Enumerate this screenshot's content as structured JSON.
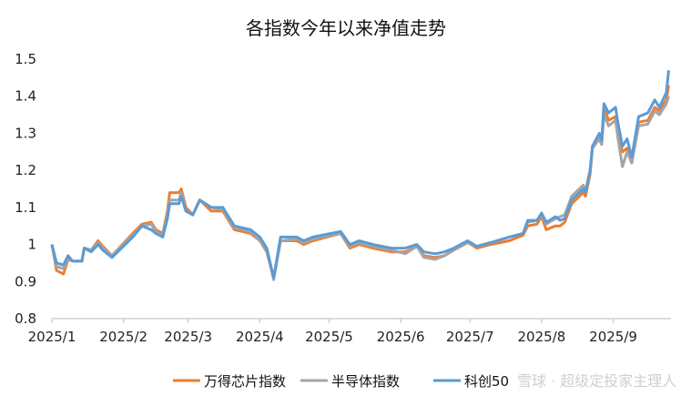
{
  "chart_data": {
    "type": "line",
    "title": "各指数今年以来净值走势",
    "xlabel": "",
    "ylabel": "",
    "ylim": [
      0.8,
      1.5
    ],
    "yticks": [
      "0.8",
      "0.9",
      "1",
      "1.1",
      "1.2",
      "1.3",
      "1.4",
      "1.5"
    ],
    "xlim": [
      "2025-01-01",
      "2025-09-26"
    ],
    "xticks": [
      {
        "date": "2025-01-01",
        "label": "2025/1"
      },
      {
        "date": "2025-02-01",
        "label": "2025/2"
      },
      {
        "date": "2025-03-01",
        "label": "2025/3"
      },
      {
        "date": "2025-04-01",
        "label": "2025/4"
      },
      {
        "date": "2025-05-01",
        "label": "2025/5"
      },
      {
        "date": "2025-06-01",
        "label": "2025/6"
      },
      {
        "date": "2025-07-01",
        "label": "2025/7"
      },
      {
        "date": "2025-08-01",
        "label": "2025/8"
      },
      {
        "date": "2025-09-01",
        "label": "2025/9"
      }
    ],
    "grid": false,
    "legend_position": "bottom",
    "x": [
      "2025-01-01",
      "2025-01-03",
      "2025-01-06",
      "2025-01-08",
      "2025-01-10",
      "2025-01-14",
      "2025-01-15",
      "2025-01-18",
      "2025-01-21",
      "2025-01-23",
      "2025-01-27",
      "2025-02-05",
      "2025-02-09",
      "2025-02-13",
      "2025-02-15",
      "2025-02-18",
      "2025-02-20",
      "2025-02-21",
      "2025-02-25",
      "2025-02-26",
      "2025-02-28",
      "2025-03-03",
      "2025-03-06",
      "2025-03-11",
      "2025-03-16",
      "2025-03-21",
      "2025-03-28",
      "2025-04-01",
      "2025-04-04",
      "2025-04-07",
      "2025-04-10",
      "2025-04-17",
      "2025-04-20",
      "2025-04-24",
      "2025-05-06",
      "2025-05-10",
      "2025-05-14",
      "2025-05-20",
      "2025-05-28",
      "2025-06-03",
      "2025-06-08",
      "2025-06-11",
      "2025-06-16",
      "2025-06-20",
      "2025-06-24",
      "2025-06-30",
      "2025-07-04",
      "2025-07-10",
      "2025-07-18",
      "2025-07-24",
      "2025-07-26",
      "2025-07-30",
      "2025-08-01",
      "2025-08-03",
      "2025-08-07",
      "2025-08-09",
      "2025-08-11",
      "2025-08-14",
      "2025-08-19",
      "2025-08-20",
      "2025-08-22",
      "2025-08-23",
      "2025-08-26",
      "2025-08-27",
      "2025-08-28",
      "2025-08-30",
      "2025-09-02",
      "2025-09-03",
      "2025-09-05",
      "2025-09-07",
      "2025-09-09",
      "2025-09-12",
      "2025-09-16",
      "2025-09-19",
      "2025-09-21",
      "2025-09-24",
      "2025-09-25"
    ],
    "series": [
      {
        "name": "万得芯片指数",
        "color": "#ED7D31",
        "values": [
          1.0,
          0.93,
          0.92,
          0.96,
          0.955,
          0.955,
          0.99,
          0.985,
          1.01,
          0.995,
          0.97,
          1.03,
          1.055,
          1.06,
          1.04,
          1.03,
          1.09,
          1.14,
          1.14,
          1.15,
          1.1,
          1.08,
          1.12,
          1.09,
          1.09,
          1.04,
          1.03,
          1.01,
          0.98,
          0.91,
          1.01,
          1.01,
          1.0,
          1.01,
          1.03,
          0.99,
          1.0,
          0.99,
          0.98,
          0.98,
          0.995,
          0.97,
          0.965,
          0.97,
          0.985,
          1.005,
          0.99,
          1.0,
          1.01,
          1.025,
          1.05,
          1.055,
          1.075,
          1.04,
          1.05,
          1.05,
          1.06,
          1.11,
          1.14,
          1.13,
          1.19,
          1.26,
          1.285,
          1.27,
          1.37,
          1.335,
          1.345,
          1.3,
          1.25,
          1.26,
          1.22,
          1.33,
          1.335,
          1.37,
          1.36,
          1.39,
          1.43
        ]
      },
      {
        "name": "半导体指数",
        "color": "#A5A5A5",
        "values": [
          1.0,
          0.94,
          0.935,
          0.965,
          0.955,
          0.955,
          0.99,
          0.985,
          1.005,
          0.99,
          0.97,
          1.025,
          1.05,
          1.055,
          1.035,
          1.025,
          1.08,
          1.12,
          1.12,
          1.14,
          1.09,
          1.08,
          1.12,
          1.1,
          1.095,
          1.045,
          1.035,
          1.01,
          0.985,
          0.905,
          1.01,
          1.015,
          1.005,
          1.015,
          1.03,
          0.995,
          1.005,
          0.995,
          0.985,
          0.975,
          0.995,
          0.965,
          0.96,
          0.97,
          0.985,
          1.005,
          0.995,
          1.005,
          1.02,
          1.03,
          1.06,
          1.065,
          1.08,
          1.055,
          1.07,
          1.075,
          1.08,
          1.13,
          1.16,
          1.145,
          1.2,
          1.26,
          1.285,
          1.27,
          1.35,
          1.32,
          1.335,
          1.29,
          1.21,
          1.25,
          1.22,
          1.32,
          1.325,
          1.36,
          1.35,
          1.38,
          1.4
        ]
      },
      {
        "name": "科创50",
        "color": "#5B9BD5",
        "values": [
          1.0,
          0.95,
          0.945,
          0.97,
          0.955,
          0.955,
          0.99,
          0.98,
          1.0,
          0.985,
          0.965,
          1.02,
          1.05,
          1.04,
          1.03,
          1.02,
          1.07,
          1.11,
          1.11,
          1.13,
          1.09,
          1.08,
          1.12,
          1.1,
          1.1,
          1.05,
          1.04,
          1.02,
          0.99,
          0.91,
          1.02,
          1.02,
          1.01,
          1.02,
          1.035,
          1.0,
          1.01,
          1.0,
          0.99,
          0.99,
          1.0,
          0.98,
          0.975,
          0.98,
          0.99,
          1.01,
          0.995,
          1.005,
          1.02,
          1.03,
          1.065,
          1.065,
          1.085,
          1.06,
          1.075,
          1.065,
          1.07,
          1.12,
          1.15,
          1.14,
          1.2,
          1.265,
          1.3,
          1.28,
          1.38,
          1.355,
          1.37,
          1.33,
          1.265,
          1.285,
          1.235,
          1.345,
          1.355,
          1.39,
          1.37,
          1.41,
          1.47
        ]
      }
    ]
  },
  "watermark": "雪球 · 超级定投家主理人"
}
